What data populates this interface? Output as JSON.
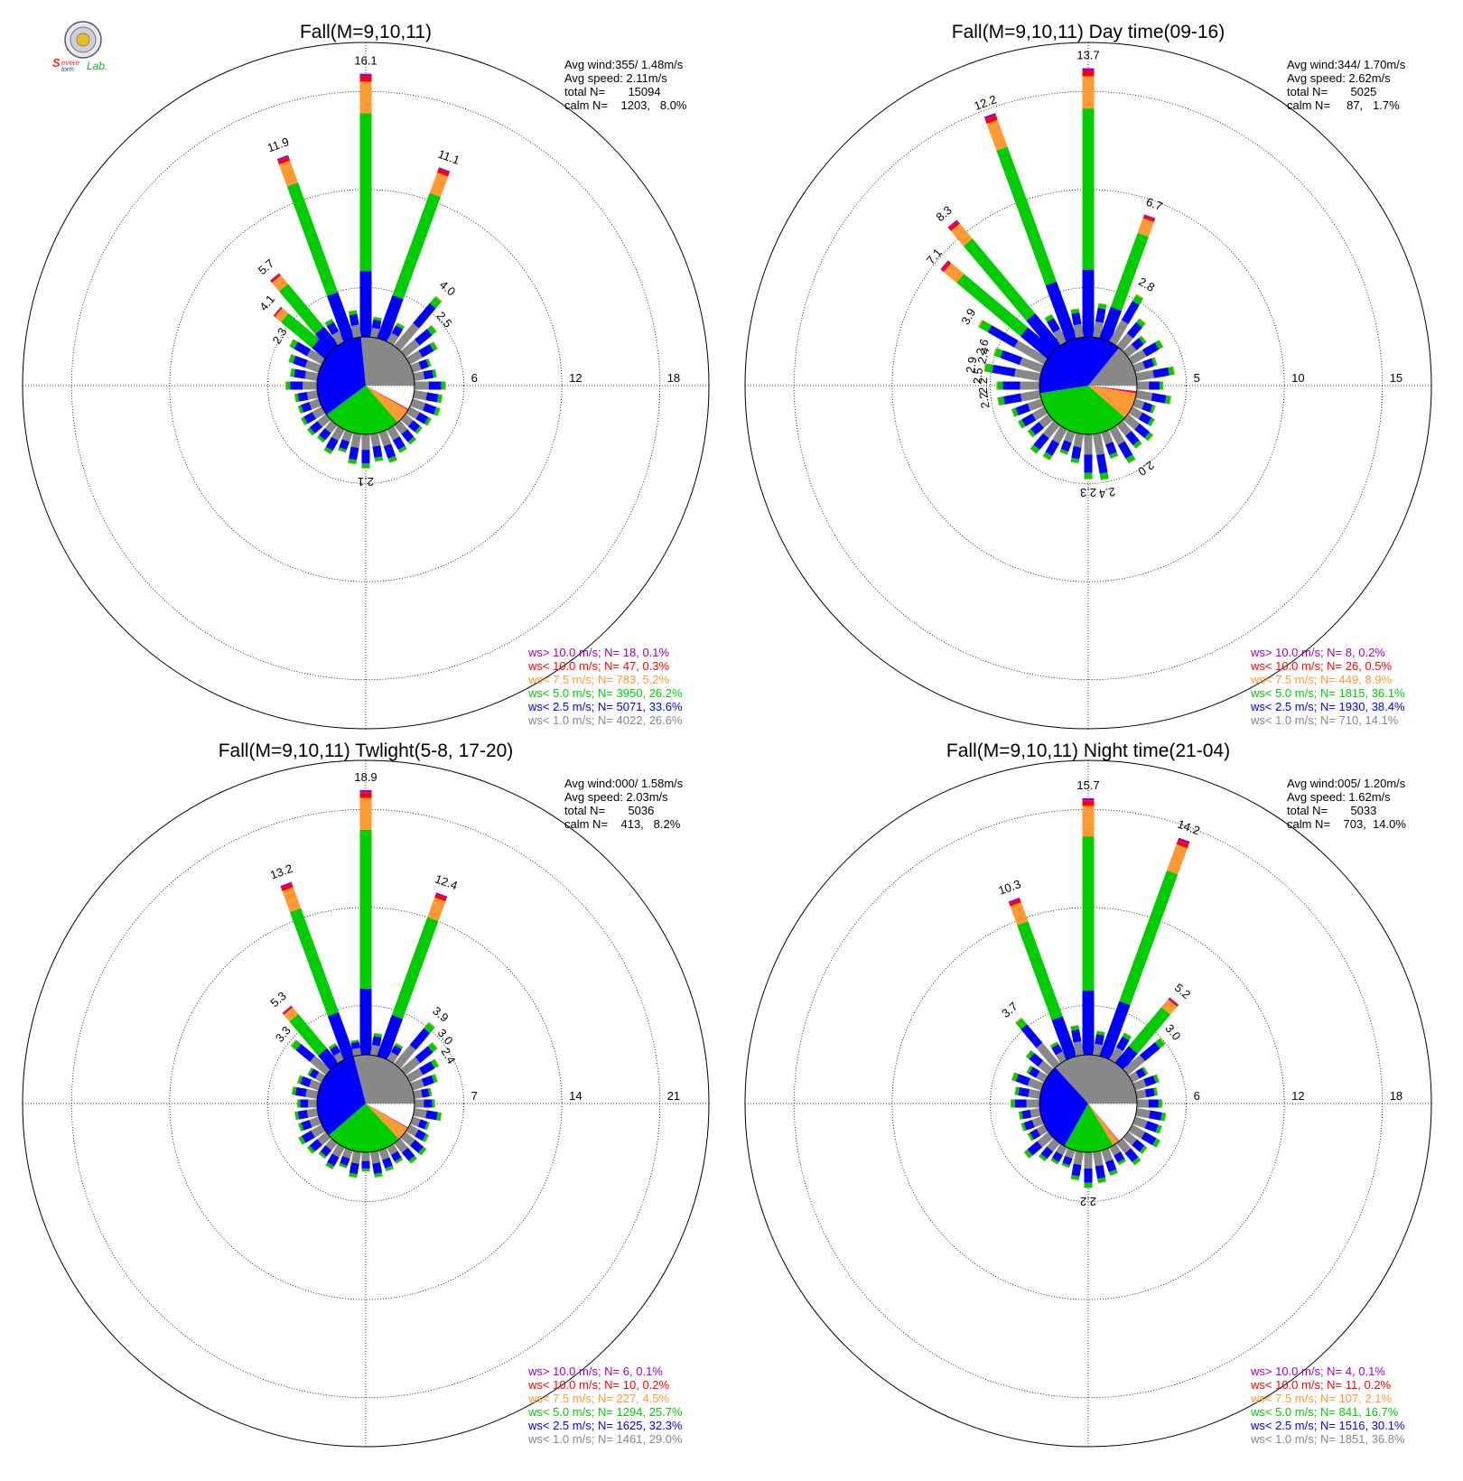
{
  "logo": {
    "line1": "Severe",
    "line2": "Storm",
    "line3": "Lab."
  },
  "legend_template": {
    "bins": [
      {
        "op": "ws>",
        "limit": "10.0 m/s;",
        "color": "#9900cc"
      },
      {
        "op": "ws<",
        "limit": "10.0 m/s;",
        "color": "#ff0000"
      },
      {
        "op": "ws<",
        "limit": "7.5 m/s;",
        "color": "#ff9933"
      },
      {
        "op": "ws<",
        "limit": "5.0 m/s;",
        "color": "#00cc00"
      },
      {
        "op": "ws<",
        "limit": "2.5 m/s;",
        "color": "#0000ff"
      },
      {
        "op": "ws<",
        "limit": "1.0 m/s;",
        "color": "#888888"
      }
    ],
    "n_label": "N="
  },
  "chart_data": [
    {
      "type": "wind-rose",
      "title": "Fall(M=9,10,11)",
      "stats": [
        "Avg wind:355/ 1.48m/s",
        "Avg speed: 2.11m/s",
        "total N=       15094",
        "calm N=    1203,   8.0%"
      ],
      "rings": [
        "6",
        "12",
        "18"
      ],
      "ring_max": 18,
      "direction_labels": [
        {
          "deg": 0,
          "text": "16.1",
          "value": 16.1
        },
        {
          "deg": 340,
          "text": "11.9",
          "value": 11.9
        },
        {
          "deg": 20,
          "text": "11.1",
          "value": 11.1
        },
        {
          "deg": 320,
          "text": "5.7",
          "value": 5.7
        },
        {
          "deg": 310,
          "text": "4.1",
          "value": 4.1
        },
        {
          "deg": 40,
          "text": "4.0",
          "value": 4.0
        },
        {
          "deg": 50,
          "text": "2.5",
          "value": 2.5
        },
        {
          "deg": 300,
          "text": "2.3",
          "value": 2.3
        },
        {
          "deg": 180,
          "text": "2.1",
          "value": 2.1
        }
      ],
      "calm_pie": [
        26.6,
        33.6,
        26.2,
        5.2,
        0.3,
        0.1
      ],
      "legend": [
        {
          "n": "18",
          "pct": "0.1%"
        },
        {
          "n": "47",
          "pct": "0.3%"
        },
        {
          "n": "783",
          "pct": "5.2%"
        },
        {
          "n": "3950",
          "pct": "26.2%"
        },
        {
          "n": "5071",
          "pct": "33.6%"
        },
        {
          "n": "4022",
          "pct": "26.6%"
        }
      ]
    },
    {
      "type": "wind-rose",
      "title": "Fall(M=9,10,11) Day time(09-16)",
      "stats": [
        "Avg wind:344/ 1.70m/s",
        "Avg speed: 2.62m/s",
        "total N=       5025",
        "calm N=     87,   1.7%"
      ],
      "rings": [
        "5",
        "10",
        "15"
      ],
      "ring_max": 15,
      "direction_labels": [
        {
          "deg": 0,
          "text": "13.7",
          "value": 13.7
        },
        {
          "deg": 340,
          "text": "12.2",
          "value": 12.2
        },
        {
          "deg": 320,
          "text": "8.3",
          "value": 8.3
        },
        {
          "deg": 310,
          "text": "7.1",
          "value": 7.1
        },
        {
          "deg": 20,
          "text": "6.7",
          "value": 6.7
        },
        {
          "deg": 300,
          "text": "3.9",
          "value": 3.9
        },
        {
          "deg": 30,
          "text": "2.8",
          "value": 2.8
        },
        {
          "deg": 290,
          "text": "2.6",
          "value": 2.6
        },
        {
          "deg": 286,
          "text": "2.4",
          "value": 2.4
        },
        {
          "deg": 280,
          "text": "2.9",
          "value": 2.9
        },
        {
          "deg": 275,
          "text": "2.5",
          "value": 2.5
        },
        {
          "deg": 270,
          "text": "2.2",
          "value": 2.2
        },
        {
          "deg": 262,
          "text": "2.2",
          "value": 2.2
        },
        {
          "deg": 180,
          "text": "2.3",
          "value": 2.3
        },
        {
          "deg": 170,
          "text": "2.4",
          "value": 2.4
        },
        {
          "deg": 145,
          "text": "2.0",
          "value": 2.0
        }
      ],
      "calm_pie": [
        14.1,
        38.4,
        36.1,
        8.9,
        0.5,
        0.2
      ],
      "legend": [
        {
          "n": "8",
          "pct": "0.2%"
        },
        {
          "n": "26",
          "pct": "0.5%"
        },
        {
          "n": "449",
          "pct": "8.9%"
        },
        {
          "n": "1815",
          "pct": "36.1%"
        },
        {
          "n": "1930",
          "pct": "38.4%"
        },
        {
          "n": "710",
          "pct": "14.1%"
        }
      ]
    },
    {
      "type": "wind-rose",
      "title": "Fall(M=9,10,11) Twlight(5-8, 17-20)",
      "stats": [
        "Avg wind:000/ 1.58m/s",
        "Avg speed: 2.03m/s",
        "total N=       5036",
        "calm N=    413,   8.2%"
      ],
      "rings": [
        "7",
        "14",
        "21"
      ],
      "ring_max": 21,
      "direction_labels": [
        {
          "deg": 0,
          "text": "18.9",
          "value": 18.9
        },
        {
          "deg": 340,
          "text": "13.2",
          "value": 13.2
        },
        {
          "deg": 20,
          "text": "12.4",
          "value": 12.4
        },
        {
          "deg": 320,
          "text": "5.3",
          "value": 5.3
        },
        {
          "deg": 310,
          "text": "3.3",
          "value": 3.3
        },
        {
          "deg": 40,
          "text": "3.9",
          "value": 3.9
        },
        {
          "deg": 50,
          "text": "3.0",
          "value": 3.0
        },
        {
          "deg": 60,
          "text": "2.4",
          "value": 2.4
        }
      ],
      "calm_pie": [
        29.0,
        32.3,
        25.7,
        4.5,
        0.2,
        0.1
      ],
      "legend": [
        {
          "n": "6",
          "pct": "0.1%"
        },
        {
          "n": "10",
          "pct": "0.2%"
        },
        {
          "n": "227",
          "pct": "4.5%"
        },
        {
          "n": "1294",
          "pct": "25.7%"
        },
        {
          "n": "1625",
          "pct": "32.3%"
        },
        {
          "n": "1461",
          "pct": "29.0%"
        }
      ]
    },
    {
      "type": "wind-rose",
      "title": "Fall(M=9,10,11) Night time(21-04)",
      "stats": [
        "Avg wind:005/ 1.20m/s",
        "Avg speed: 1.62m/s",
        "total N=       5033",
        "calm N=    703,  14.0%"
      ],
      "rings": [
        "6",
        "12",
        "18"
      ],
      "ring_max": 18,
      "direction_labels": [
        {
          "deg": 0,
          "text": "15.7",
          "value": 15.7
        },
        {
          "deg": 20,
          "text": "14.2",
          "value": 14.2
        },
        {
          "deg": 340,
          "text": "10.3",
          "value": 10.3
        },
        {
          "deg": 40,
          "text": "5.2",
          "value": 5.2
        },
        {
          "deg": 320,
          "text": "3.7",
          "value": 3.7
        },
        {
          "deg": 50,
          "text": "3.0",
          "value": 3.0
        },
        {
          "deg": 180,
          "text": "2.2",
          "value": 2.2
        }
      ],
      "calm_pie": [
        36.8,
        30.1,
        16.7,
        2.1,
        0.2,
        0.1
      ],
      "legend": [
        {
          "n": "4",
          "pct": "0.1%"
        },
        {
          "n": "11",
          "pct": "0.2%"
        },
        {
          "n": "107",
          "pct": "2.1%"
        },
        {
          "n": "841",
          "pct": "16.7%"
        },
        {
          "n": "1516",
          "pct": "30.1%"
        },
        {
          "n": "1851",
          "pct": "36.8%"
        }
      ]
    }
  ]
}
